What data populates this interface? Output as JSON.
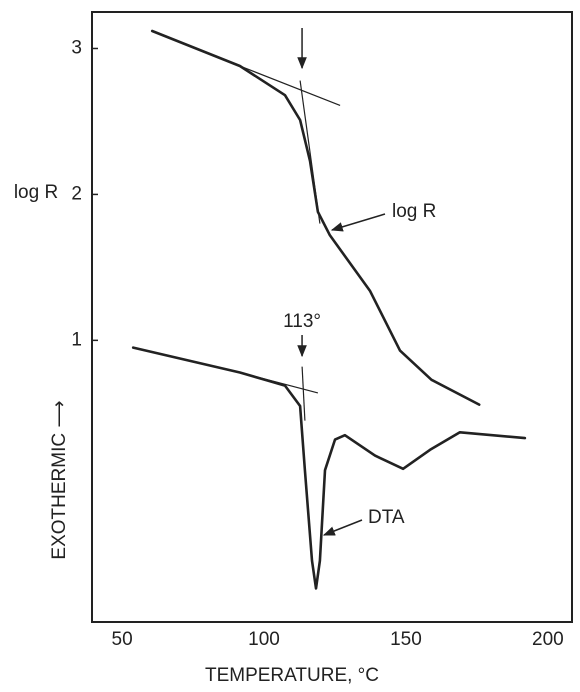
{
  "chart_data": {
    "type": "line",
    "xlabel": "TEMPERATURE, °C",
    "ylabel": "log R",
    "ylabel2": "EXOTHERMIC ⟶",
    "xlim": [
      39.4,
      208.5
    ],
    "ylim": [
      -0.93,
      3.25
    ],
    "xticks": [
      50,
      100,
      150,
      200
    ],
    "yticks": [
      1,
      2,
      3
    ],
    "series": [
      {
        "name": "log R",
        "color": "#222222",
        "x": [
          60.6,
          91.5,
          107.4,
          112.7,
          116.2,
          119,
          123.2,
          137.3,
          147.9,
          159,
          175.8
        ],
        "values": [
          3.12,
          2.88,
          2.68,
          2.51,
          2.23,
          1.88,
          1.72,
          1.34,
          0.93,
          0.73,
          0.56
        ]
      },
      {
        "name": "DTA",
        "color": "#222222",
        "x": [
          53.9,
          91.5,
          107.4,
          112.7,
          114.4,
          116.9,
          118.3,
          119.7,
          121.5,
          125,
          128.5,
          139.1,
          149,
          158.5,
          169,
          191.9
        ],
        "values": [
          0.95,
          0.78,
          0.69,
          0.55,
          0.11,
          -0.51,
          -0.7,
          -0.51,
          0.11,
          0.32,
          0.35,
          0.21,
          0.12,
          0.25,
          0.37,
          0.33
        ]
      }
    ],
    "tangent_lines": [
      {
        "x": [
          91.5,
          126.8
        ],
        "values": [
          2.88,
          2.61
        ]
      },
      {
        "x": [
          112.7,
          119.7
        ],
        "values": [
          2.78,
          1.8
        ]
      },
      {
        "x": [
          91.5,
          119
        ],
        "values": [
          0.78,
          0.64
        ]
      },
      {
        "x": [
          113.4,
          114.4
        ],
        "values": [
          0.82,
          0.45
        ]
      }
    ],
    "annotations": [
      {
        "text": "113°",
        "x": 113.4
      }
    ]
  }
}
